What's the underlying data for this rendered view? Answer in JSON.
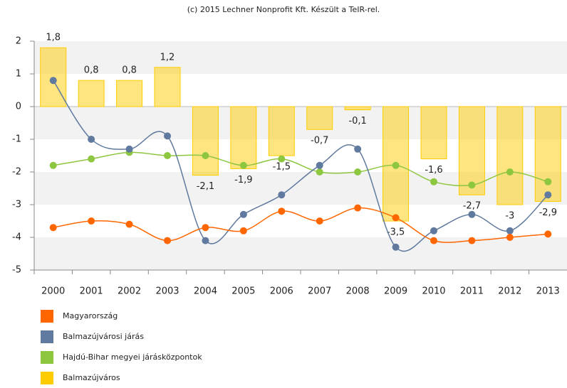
{
  "chart_data": {
    "type": "bar",
    "title": "(c) 2015 Lechner Nonprofit Kft. Készült a TeIR-rel.",
    "categories": [
      "2000",
      "2001",
      "2002",
      "2003",
      "2004",
      "2005",
      "2006",
      "2007",
      "2008",
      "2009",
      "2010",
      "2011",
      "2012",
      "2013"
    ],
    "ylim": [
      -5,
      2
    ],
    "yticks": [
      -5,
      -4,
      -3,
      -2,
      -1,
      0,
      1,
      2
    ],
    "grid": true,
    "legend": "bottom-left",
    "series": [
      {
        "name": "Magyarország",
        "type": "line",
        "color": "#ff6600",
        "values": [
          -3.7,
          -3.5,
          -3.6,
          -4.1,
          -3.7,
          -3.8,
          -3.2,
          -3.5,
          -3.1,
          -3.4,
          -4.1,
          -4.1,
          -4.0,
          -3.9
        ]
      },
      {
        "name": "Balmazújvárosi járás",
        "type": "line",
        "color": "#5f7a9e",
        "values": [
          0.8,
          -1.0,
          -1.3,
          -0.9,
          -4.1,
          -3.3,
          -2.7,
          -1.8,
          -1.3,
          -4.3,
          -3.8,
          -3.3,
          -3.8,
          -2.7
        ]
      },
      {
        "name": "Hajdú-Bihar megyei járásközpontok",
        "type": "line",
        "color": "#8dc63f",
        "values": [
          -1.8,
          -1.6,
          -1.4,
          -1.5,
          -1.5,
          -1.8,
          -1.6,
          -2.0,
          -2.0,
          -1.8,
          -2.3,
          -2.4,
          -2.0,
          -2.3
        ]
      },
      {
        "name": "Balmazújváros",
        "type": "bar",
        "color": "#ffcc00",
        "values": [
          1.8,
          0.8,
          0.8,
          1.2,
          -2.1,
          -1.9,
          -1.5,
          -0.7,
          -0.1,
          -3.5,
          -1.6,
          -2.7,
          -3,
          -2.9
        ],
        "value_labels": [
          "1,8",
          "0,8",
          "0,8",
          "1,2",
          "-2,1",
          "-1,9",
          "-1,5",
          "-0,7",
          "-0,1",
          "-3,5",
          "-1,6",
          "-2,7",
          "-3",
          "-2,9"
        ]
      }
    ]
  }
}
